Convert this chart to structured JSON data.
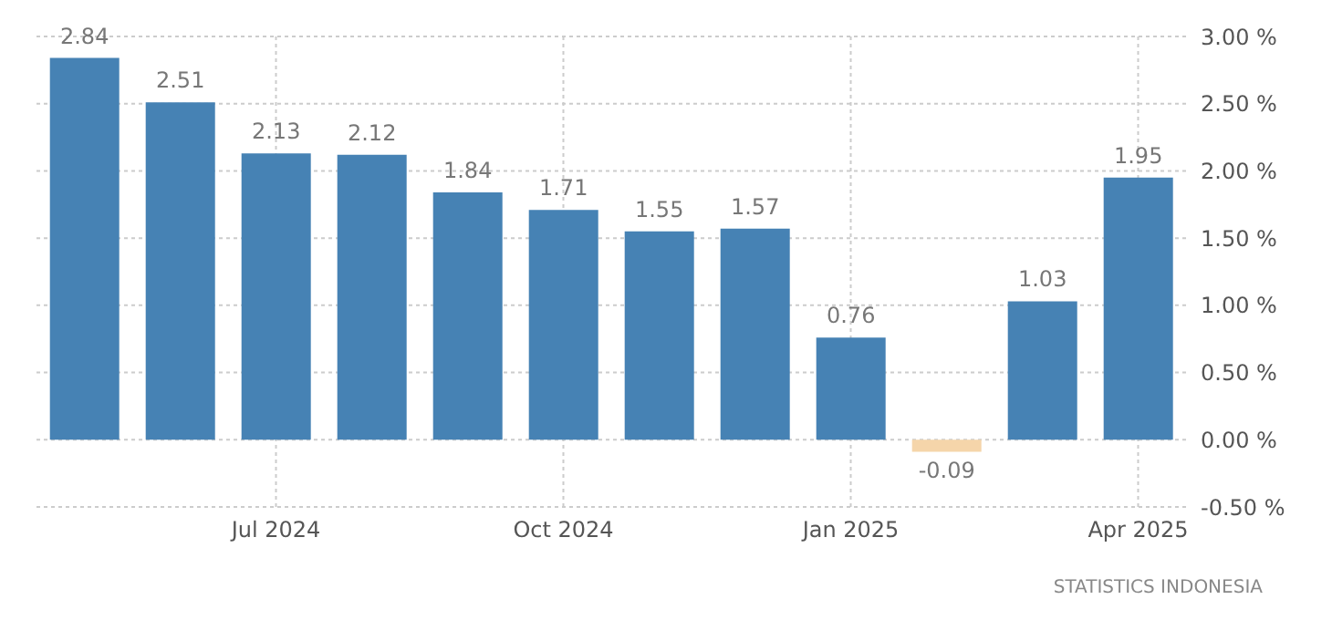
{
  "chart_data": {
    "type": "bar",
    "categories": [
      null,
      null,
      "Jul 2024",
      null,
      null,
      "Oct 2024",
      null,
      null,
      "Jan 2025",
      null,
      null,
      "Apr 2025"
    ],
    "values": [
      2.84,
      2.51,
      2.13,
      2.12,
      1.84,
      1.71,
      1.55,
      1.57,
      0.76,
      -0.09,
      1.03,
      1.95
    ],
    "colors": [
      "#4682b4",
      "#4682b4",
      "#4682b4",
      "#4682b4",
      "#4682b4",
      "#4682b4",
      "#4682b4",
      "#4682b4",
      "#4682b4",
      "#f5d5aa",
      "#4682b4",
      "#4682b4"
    ],
    "data_labels": true,
    "ylim": [
      -0.5,
      3.0
    ],
    "yticks": [
      {
        "value": -0.5,
        "label": "-0.50 %"
      },
      {
        "value": 0,
        "label": "0.00 %"
      },
      {
        "value": 0.5,
        "label": "0.50 %"
      },
      {
        "value": 1,
        "label": "1.00 %"
      },
      {
        "value": 1.5,
        "label": "1.50 %"
      },
      {
        "value": 2,
        "label": "2.00 %"
      },
      {
        "value": 2.5,
        "label": "2.50 %"
      },
      {
        "value": 3,
        "label": "3.00 %"
      }
    ],
    "grid": true,
    "annotations": [
      "STATISTICS INDONESIA"
    ]
  }
}
